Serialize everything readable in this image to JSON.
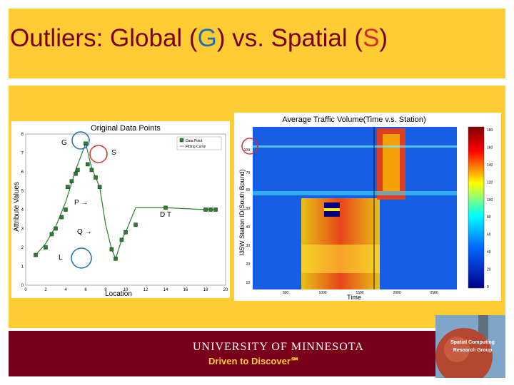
{
  "slide": {
    "title_prefix": "Outliers: Global (",
    "title_g": "G",
    "title_mid": ") vs. Spatial (",
    "title_s": "S",
    "title_suffix": ")",
    "colors": {
      "title": "#7a0019",
      "g": "#1f6fb5",
      "s": "#d0312d",
      "band": "#ffcc33",
      "footer": "#7a0019"
    }
  },
  "footer": {
    "university": "UNIVERSITY OF MINNESOTA",
    "tagline": "Driven to Discover℠",
    "logo_text_1": "Spatial Computing",
    "logo_text_2": "Research Group"
  },
  "chart_data": [
    {
      "type": "line",
      "title": "Original Data Points",
      "xlabel": "Location",
      "ylabel": "Attribute Values",
      "xlim": [
        0,
        20
      ],
      "ylim": [
        0,
        8
      ],
      "xticks": [
        "0",
        "2",
        "4",
        "6",
        "8",
        "10",
        "12",
        "14",
        "16",
        "18",
        "20"
      ],
      "yticks": [
        "0",
        "1",
        "2",
        "3",
        "4",
        "5",
        "6",
        "7",
        "8"
      ],
      "legend": [
        "Data Point",
        "Fitting Curve"
      ],
      "series": [
        {
          "name": "Data Point",
          "x": [
            1,
            2,
            2.6,
            3,
            3.6,
            4,
            4.2,
            4.6,
            5,
            5.2,
            6,
            6.2,
            6.6,
            7,
            7.4,
            8.6,
            9,
            9.6,
            10,
            11,
            14,
            18,
            18.5,
            19
          ],
          "y": [
            1.6,
            2,
            2.7,
            3,
            3.6,
            4,
            5.2,
            5.5,
            5.9,
            6.1,
            7.5,
            6.4,
            6.1,
            5.7,
            5.2,
            1.9,
            1.4,
            2.4,
            2.8,
            3.2,
            4.1,
            4,
            4,
            4
          ]
        },
        {
          "name": "Fitting Curve",
          "x": [
            1,
            2,
            3,
            4,
            5,
            6,
            6.6,
            7,
            7.4,
            8,
            8.6,
            9,
            9.6,
            10,
            11,
            14,
            18,
            19
          ],
          "y": [
            1.6,
            2.2,
            3.1,
            4.4,
            6.1,
            7.5,
            6.2,
            5.7,
            5.2,
            3.2,
            1.9,
            1.4,
            2.4,
            2.8,
            4.1,
            4.1,
            4,
            4
          ]
        }
      ],
      "annotations": [
        "G",
        "S",
        "P →",
        "D T",
        "Q →",
        "L"
      ]
    },
    {
      "type": "heatmap",
      "title": "Average Traffic Volume(Time v.s. Station)",
      "xlabel": "Time",
      "ylabel": "I35W Station ID(South Bound)",
      "xticks": [
        "500",
        "1000",
        "1500",
        "2000",
        "2500"
      ],
      "yticks": [
        "100",
        "70",
        "60",
        "50",
        "40",
        "30",
        "20",
        "10"
      ],
      "colorbar_ticks": [
        "180",
        "160",
        "140",
        "120",
        "100",
        "80",
        "60",
        "40",
        "20",
        "0"
      ]
    }
  ]
}
